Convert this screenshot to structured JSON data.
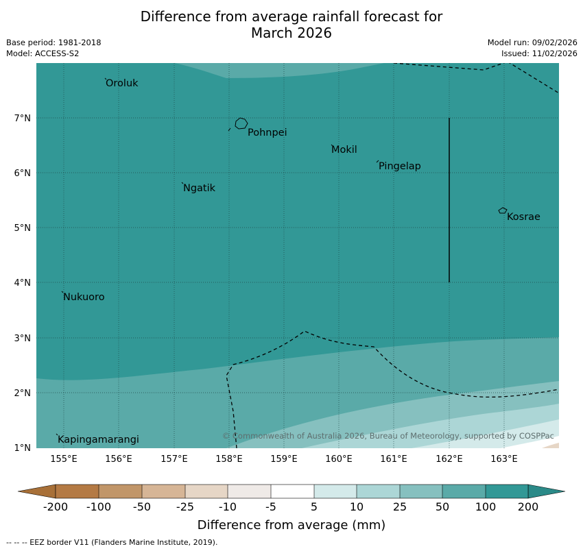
{
  "title": {
    "line1": "Difference from average rainfall forecast for",
    "line2": "March 2026"
  },
  "meta": {
    "base_period": "Base period: 1981-2018",
    "model": "Model: ACCESS-S2",
    "model_run": "Model run: 09/02/2026",
    "issued": "Issued: 11/02/2026"
  },
  "map": {
    "lat_ticks": [
      "7°N",
      "6°N",
      "5°N",
      "4°N",
      "3°N",
      "2°N",
      "1°N"
    ],
    "lon_ticks": [
      "155°E",
      "156°E",
      "157°E",
      "158°E",
      "159°E",
      "160°E",
      "161°E",
      "162°E",
      "163°E"
    ],
    "places": [
      "Oroluk",
      "Pohnpei",
      "Mokil",
      "Pingelap",
      "Ngatik",
      "Kosrae",
      "Nukuoro",
      "Kapingamarangi"
    ],
    "copyright": "© Commonwealth of Australia 2026, Bureau of Meteorology, supported by COSPPac"
  },
  "colorbar": {
    "labels": [
      "-200",
      "-100",
      "-50",
      "-25",
      "-10",
      "-5",
      "5",
      "10",
      "25",
      "50",
      "100",
      "200"
    ],
    "colors": [
      "#a87038",
      "#b47a44",
      "#c19669",
      "#d6b596",
      "#e6d6c6",
      "#efeae7",
      "#ffffff",
      "#d4eaea",
      "#acd6d6",
      "#86c0bf",
      "#5aaaa8",
      "#329896",
      "#2b8a88"
    ],
    "title": "Difference from average (mm)"
  },
  "footnote": "--  --  -- EEZ border V11 (Flanders Marine Institute, 2019)."
}
